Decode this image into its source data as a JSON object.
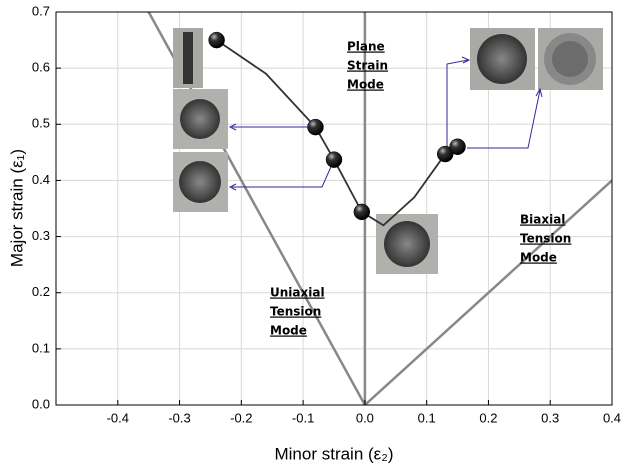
{
  "chart_data": {
    "type": "line",
    "x_label": "Minor strain (ε₂)",
    "y_label": "Major strain (ε₁)",
    "xlim": [
      -0.5,
      0.4
    ],
    "ylim": [
      0,
      0.7
    ],
    "xticks": [
      -0.4,
      -0.3,
      -0.2,
      -0.1,
      {
        "value": 0,
        "label": "0.0"
      },
      0.1,
      0.2,
      0.3,
      0.4
    ],
    "yticks": [
      {
        "value": 0,
        "label": "0.0"
      },
      0.1,
      0.2,
      0.3,
      0.4,
      0.5,
      0.6,
      0.7
    ],
    "grid": true,
    "curve": {
      "color": "#333333",
      "x": [
        -0.24,
        -0.16,
        -0.08,
        -0.05,
        -0.005,
        0.03,
        0.08,
        0.13,
        0.15
      ],
      "values": [
        0.65,
        0.59,
        0.495,
        0.437,
        0.344,
        0.32,
        0.37,
        0.447,
        0.46
      ]
    },
    "points": {
      "color": "#000000",
      "x": [
        -0.24,
        -0.08,
        -0.05,
        -0.005,
        0.13,
        0.15
      ],
      "values": [
        0.65,
        0.495,
        0.437,
        0.344,
        0.447,
        0.46
      ]
    },
    "reference_lines": {
      "color": "#888888",
      "series": [
        {
          "x": [
            0,
            -0.35
          ],
          "values": [
            0,
            0.7
          ]
        },
        {
          "x": [
            0,
            0
          ],
          "values": [
            0,
            0.7
          ]
        },
        {
          "x": [
            0,
            0.4
          ],
          "values": [
            0,
            0.4
          ]
        }
      ]
    },
    "annotations": [
      [
        "Plane",
        "Strain",
        "Mode"
      ],
      [
        "Uniaxial",
        "Tension",
        "Mode"
      ],
      [
        "Biaxial",
        "Tension",
        "Mode"
      ]
    ]
  }
}
